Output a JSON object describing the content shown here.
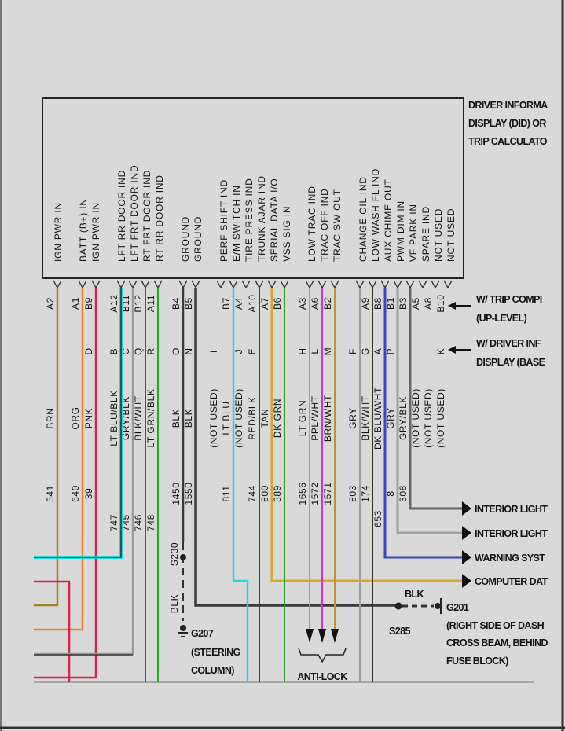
{
  "module_title": [
    "DRIVER INFORMA",
    "DISPLAY (DID) OR",
    "TRIP CALCULATO"
  ],
  "variant_notes": {
    "up_level": [
      "W/ TRIP COMPI",
      "(UP-LEVEL)"
    ],
    "base": [
      "W/ DRIVER INF",
      "DISPLAY (BASE"
    ]
  },
  "pin_functions": [
    "IGN PWR IN",
    "BATT (B+) IN",
    "IGN PWR IN",
    "LFT RR DOOR IND",
    "LFT FRT DOOR IND",
    "RT FRT DOOR IND",
    "RT RR DOOR IND",
    "GROUND",
    "GROUND",
    "PERF SHIFT IND",
    "E/M SWITCH IN",
    "TIRE PRESS IND",
    "TRUNK AJAR IND",
    "SERIAL DATA I/O",
    "VSS SIG IN",
    "LOW TRAC IND",
    "TRAC OFF IND",
    "TRAC SW OUT",
    "CHANGE OIL IND",
    "LOW WASH FL IND",
    "AUX CHIME OUT",
    "PWM DIM IN",
    "VF PARK IN",
    "SPARE IND",
    "NOT USED",
    "NOT USED"
  ],
  "columns": [
    {
      "pin": "A2",
      "letter": "",
      "color": "BRN",
      "circuit": "541",
      "wire": "#a8801c"
    },
    {
      "pin": "A1",
      "letter": "",
      "color": "ORG",
      "circuit": "640",
      "wire": "#e8821e"
    },
    {
      "pin": "B9",
      "letter": "D",
      "color": "PNK",
      "circuit": "39",
      "wire": "#e0204a"
    },
    {
      "pin": "A12",
      "letter": "B",
      "color": "LT BLU/BLK",
      "circuit": "747",
      "wire": "#333333"
    },
    {
      "pin": "B11",
      "letter": "C",
      "color": "GRY/BLK",
      "circuit": "745",
      "wire": "#9a9a9a"
    },
    {
      "pin": "B12",
      "letter": "Q",
      "color": "BLK/WHT",
      "circuit": "746",
      "wire": "#555555"
    },
    {
      "pin": "A11",
      "letter": "R",
      "color": "LT GRN/BLK",
      "circuit": "748",
      "wire": "#18b018"
    },
    {
      "pin": "B4",
      "letter": "O",
      "color": "BLK",
      "circuit": "1450",
      "wire": "#3a3a3a"
    },
    {
      "pin": "B5",
      "letter": "N",
      "color": "BLK",
      "circuit": "1550",
      "wire": "#3a3a3a"
    },
    {
      "pin": "",
      "letter": "I",
      "color": "(NOT USED)",
      "circuit": "",
      "wire": ""
    },
    {
      "pin": "B7",
      "letter": "",
      "color": "LT BLU",
      "circuit": "811",
      "wire": "#22d8e0"
    },
    {
      "pin": "A4",
      "letter": "J",
      "color": "(NOT USED)",
      "circuit": "",
      "wire": ""
    },
    {
      "pin": "A10",
      "letter": "E",
      "color": "RED/BLK",
      "circuit": "744",
      "wire": "#9a1a1a"
    },
    {
      "pin": "A7",
      "letter": "",
      "color": "TAN",
      "circuit": "800",
      "wire": "#d8a828"
    },
    {
      "pin": "B6",
      "letter": "",
      "color": "DK GRN",
      "circuit": "389",
      "wire": "#22a022"
    },
    {
      "pin": "A3",
      "letter": "H",
      "color": "LT GRN",
      "circuit": "1656",
      "wire": "#48e040"
    },
    {
      "pin": "A6",
      "letter": "L",
      "color": "PPL/WHT",
      "circuit": "1572",
      "wire": "#e028e0"
    },
    {
      "pin": "B2",
      "letter": "M",
      "color": "BRN/WHT",
      "circuit": "1571",
      "wire": "#c8902a"
    },
    {
      "pin": "",
      "letter": "F",
      "color": "GRY",
      "circuit": "803",
      "wire": "#a0a0a0"
    },
    {
      "pin": "A9",
      "letter": "G",
      "color": "BLK/WHT",
      "circuit": "174",
      "wire": "#333333"
    },
    {
      "pin": "B8",
      "letter": "A",
      "color": "DK BLU/WHT",
      "circuit": "653",
      "wire": "#3848c0"
    },
    {
      "pin": "B1",
      "letter": "P",
      "color": "GRY",
      "circuit": "8",
      "wire": "#a0a0a0"
    },
    {
      "pin": "B3",
      "letter": "",
      "color": "GRY/BLK",
      "circuit": "308",
      "wire": "#666666"
    },
    {
      "pin": "A5",
      "letter": "",
      "color": "(NOT USED)",
      "circuit": "",
      "wire": ""
    },
    {
      "pin": "A8",
      "letter": "",
      "color": "(NOT USED)",
      "circuit": "",
      "wire": ""
    },
    {
      "pin": "B10",
      "letter": "K",
      "color": "(NOT USED)",
      "circuit": "",
      "wire": ""
    }
  ],
  "destinations": [
    "INTERIOR LIGHT",
    "INTERIOR LIGHT",
    "WARNING SYST",
    "COMPUTER DAT"
  ],
  "splices": {
    "s230": "S230",
    "s230_color": "BLK",
    "g207": [
      "G207",
      "(STEERING",
      "COLUMN)"
    ],
    "s285": "S285",
    "s285_color": "BLK",
    "g201": [
      "G201",
      "(RIGHT SIDE OF DASH",
      "CROSS BEAM, BEHIND",
      "FUSE BLOCK)"
    ],
    "anti_lock": "ANTI-LOCK"
  }
}
